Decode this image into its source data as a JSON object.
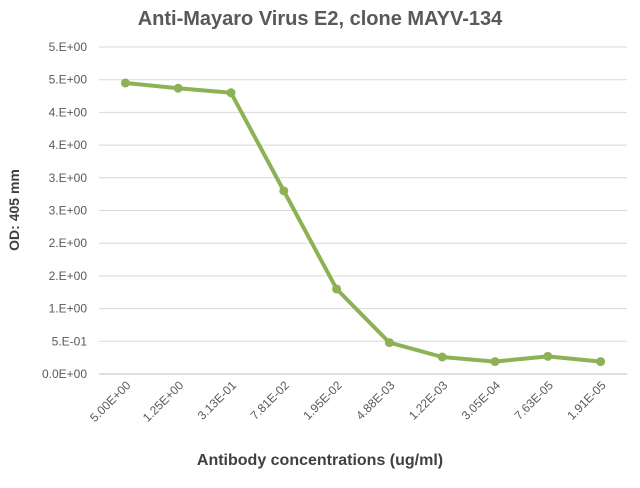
{
  "chart_data": {
    "type": "line",
    "title": "Anti-Mayaro Virus E2, clone MAYV-134",
    "xlabel": "Antibody concentrations (ug/ml)",
    "ylabel": "OD: 405 mm",
    "categories": [
      "5.00E+00",
      "1.25E+00",
      "3.13E-01",
      "7.81E-02",
      "1.95E-02",
      "4.88E-03",
      "1.22E-03",
      "3.05E-04",
      "7.63E-05",
      "1.91E-05"
    ],
    "y_tick_labels": [
      "0.0E+00",
      "5.E-01",
      "1.E+00",
      "2.E+00",
      "2.E+00",
      "3.E+00",
      "3.E+00",
      "4.E+00",
      "4.E+00",
      "5.E+00",
      "5.E+00"
    ],
    "ylim": [
      0,
      5
    ],
    "grid": true,
    "series": [
      {
        "values": [
          4.45,
          4.37,
          4.3,
          2.8,
          1.3,
          0.48,
          0.26,
          0.19,
          0.27,
          0.19
        ]
      }
    ],
    "color": "#8db255"
  }
}
